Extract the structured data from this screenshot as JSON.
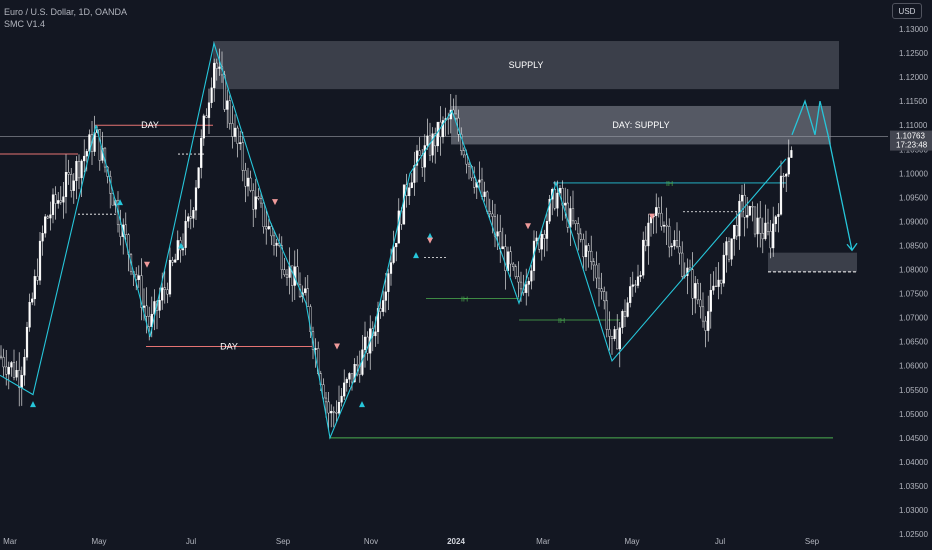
{
  "header": {
    "title": "Euro / U.S. Dollar, 1D, OANDA",
    "indicator": "SMC V1.4"
  },
  "currency_button": "USD",
  "price_badge": {
    "price": "1.10763",
    "countdown": "17:23:48",
    "value": 1.10763
  },
  "colors": {
    "background": "#131722",
    "candle": "#ffffff",
    "structure_line": "#26c6da",
    "zone_fill": "#434651",
    "day_level": "#e57373",
    "swing_level": "#4caf50",
    "badge": "#434651"
  },
  "chart_data": {
    "type": "candlestick",
    "title": "Euro / U.S. Dollar, 1D, OANDA",
    "ylim": [
      1.025,
      1.135
    ],
    "y_ticks": [
      "1.13000",
      "1.12500",
      "1.12000",
      "1.11500",
      "1.11000",
      "1.10500",
      "1.10000",
      "1.09500",
      "1.09000",
      "1.08500",
      "1.08000",
      "1.07500",
      "1.07000",
      "1.06500",
      "1.06000",
      "1.05500",
      "1.05000",
      "1.04500",
      "1.04000",
      "1.03500",
      "1.03000",
      "1.02500"
    ],
    "x_ticks": [
      "Mar",
      "May",
      "Jul",
      "Sep",
      "Nov",
      "2024",
      "Mar",
      "May",
      "Jul",
      "Sep"
    ],
    "zones": [
      {
        "label": "SUPPLY",
        "top": 1.1275,
        "bottom": 1.1175
      },
      {
        "label": "DAY: SUPPLY",
        "top": 1.114,
        "bottom": 1.106
      },
      {
        "label": "",
        "top": 1.0835,
        "bottom": 1.0795
      }
    ],
    "levels": [
      {
        "label": "DAY",
        "price": 1.11
      },
      {
        "label": "DAY",
        "price": 1.064
      },
      {
        "label": "",
        "price": 1.045
      }
    ],
    "swing_labels": [
      "IH",
      "IH",
      "IH"
    ],
    "structure_path": [
      1.058,
      1.092,
      1.075,
      1.11,
      1.084,
      1.066,
      1.124,
      1.096,
      1.075,
      1.046,
      1.09,
      1.113,
      1.073,
      1.098,
      1.061,
      1.103,
      1.067,
      1.093,
      1.08,
      1.109
    ]
  }
}
